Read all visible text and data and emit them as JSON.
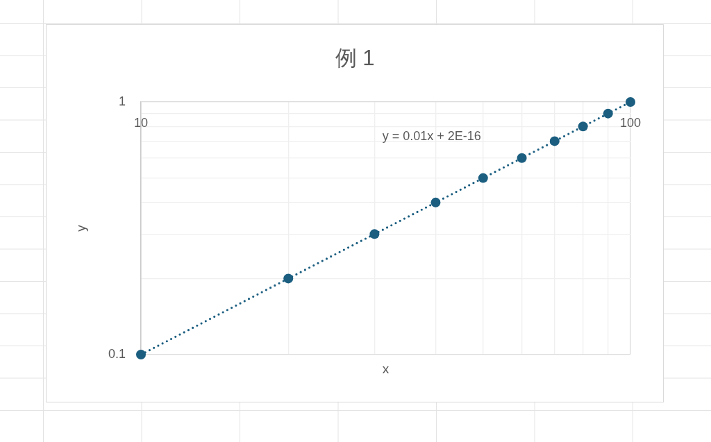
{
  "chart_data": {
    "type": "scatter",
    "title": "例 1",
    "xlabel": "x",
    "ylabel": "y",
    "log": "xy",
    "xlim": [
      10,
      100
    ],
    "ylim": [
      0.1,
      1
    ],
    "xticks": [
      10,
      {
        "value": 20,
        "label": null
      },
      {
        "value": 30,
        "label": null
      },
      {
        "value": 40,
        "label": null
      },
      {
        "value": 50,
        "label": null
      },
      {
        "value": 60,
        "label": null
      },
      {
        "value": 70,
        "label": null
      },
      {
        "value": 80,
        "label": null
      },
      {
        "value": 90,
        "label": null
      },
      100
    ],
    "yticks": [
      0.1,
      {
        "value": 0.2,
        "label": null
      },
      {
        "value": 0.3,
        "label": null
      },
      {
        "value": 0.4,
        "label": null
      },
      {
        "value": 0.5,
        "label": null
      },
      {
        "value": 0.6,
        "label": null
      },
      {
        "value": 0.7,
        "label": null
      },
      {
        "value": 0.8,
        "label": null
      },
      {
        "value": 0.9,
        "label": null
      },
      1
    ],
    "grid": true,
    "marker": "circle",
    "annotations": [
      "y = 0.01x + 2E-16"
    ],
    "series": [
      {
        "color": "#1b5e80",
        "x": [
          10,
          20,
          30,
          40,
          50,
          60,
          70,
          80,
          90,
          100
        ],
        "values": [
          0.1,
          0.2,
          0.3,
          0.4,
          0.5,
          0.6,
          0.7,
          0.8,
          0.9,
          1
        ]
      },
      {
        "type": "line",
        "color": "#1b5e80",
        "x": [
          10,
          100
        ],
        "values": [
          0.1,
          1
        ],
        "line_style": "dotted",
        "marker": "none"
      }
    ]
  }
}
